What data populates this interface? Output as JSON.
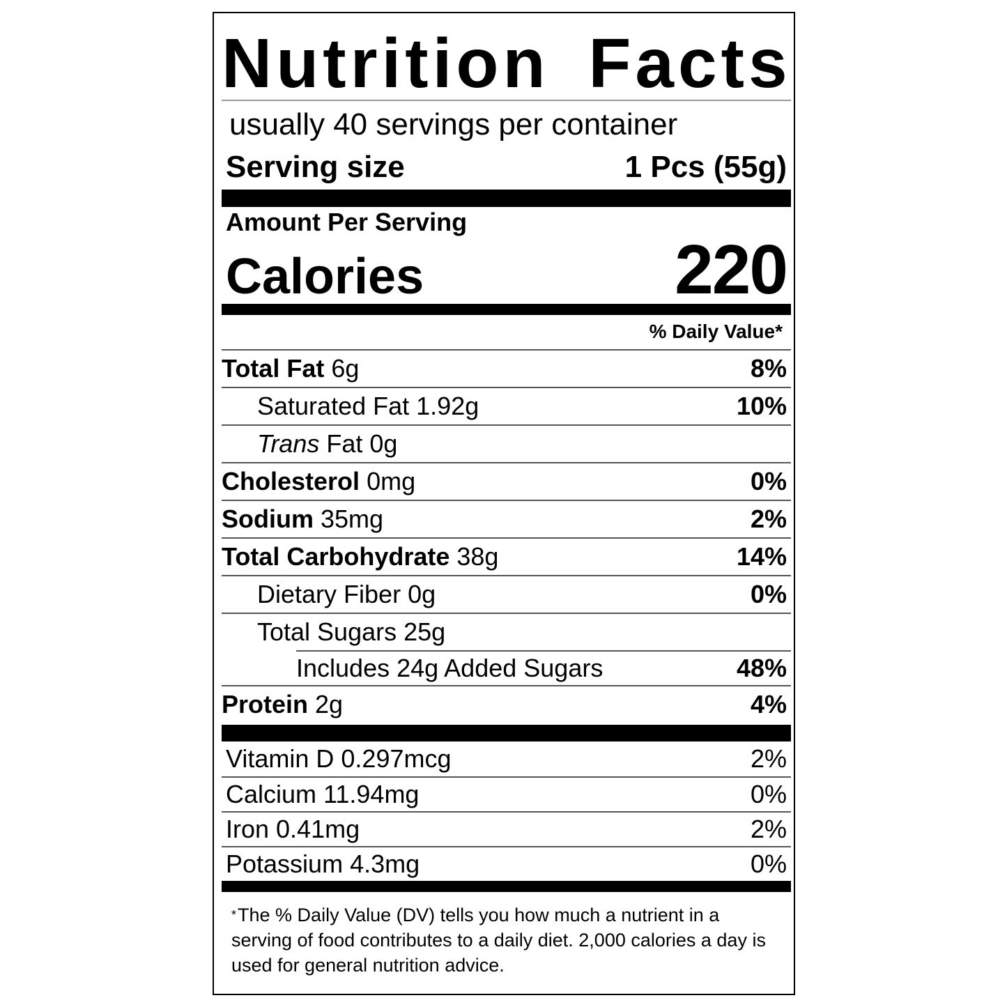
{
  "title": "Nutrition Facts",
  "servings_per_container": "usually 40 servings per container",
  "serving_size": {
    "label": "Serving size",
    "value": "1 Pcs (55g)"
  },
  "amount_per_serving": "Amount Per Serving",
  "calories": {
    "label": "Calories",
    "value": "220"
  },
  "daily_value_header": "% Daily Value*",
  "nutrients": [
    {
      "name": "Total Fat",
      "amount": "6g",
      "dv": "8%",
      "bold": true,
      "indent": 0
    },
    {
      "name": "Saturated Fat",
      "amount": "1.92g",
      "dv": "10%",
      "bold": false,
      "indent": 1
    },
    {
      "name": "Trans",
      "name_suffix": "Fat",
      "amount": "0g",
      "dv": "",
      "bold": false,
      "indent": 1
    },
    {
      "name": "Cholesterol",
      "amount": "0mg",
      "dv": "0%",
      "bold": true,
      "indent": 0
    },
    {
      "name": "Sodium",
      "amount": "35mg",
      "dv": "2%",
      "bold": true,
      "indent": 0
    },
    {
      "name": "Total Carbohydrate",
      "amount": "38g",
      "dv": "14%",
      "bold": true,
      "indent": 0
    },
    {
      "name": "Dietary Fiber",
      "amount": "0g",
      "dv": "0%",
      "bold": false,
      "indent": 1
    },
    {
      "name": "Total Sugars",
      "amount": "25g",
      "dv": "",
      "bold": false,
      "indent": 1
    },
    {
      "name": "Includes 24g Added Sugars",
      "amount": "",
      "dv": "48%",
      "bold": false,
      "indent": 2
    },
    {
      "name": "Protein",
      "amount": "2g",
      "dv": "4%",
      "bold": true,
      "indent": 0
    }
  ],
  "vitamins": [
    {
      "name": "Vitamin D 0.297mcg",
      "dv": "2%"
    },
    {
      "name": "Calcium 11.94mg",
      "dv": "0%"
    },
    {
      "name": "Iron 0.41mg",
      "dv": "2%"
    },
    {
      "name": "Potassium 4.3mg",
      "dv": "0%"
    }
  ],
  "footnote": {
    "star": "*",
    "text": "The % Daily Value (DV) tells you how much a nutrient in a serving of food contributes to a daily diet. 2,000 calories a day is used for general nutrition advice."
  }
}
